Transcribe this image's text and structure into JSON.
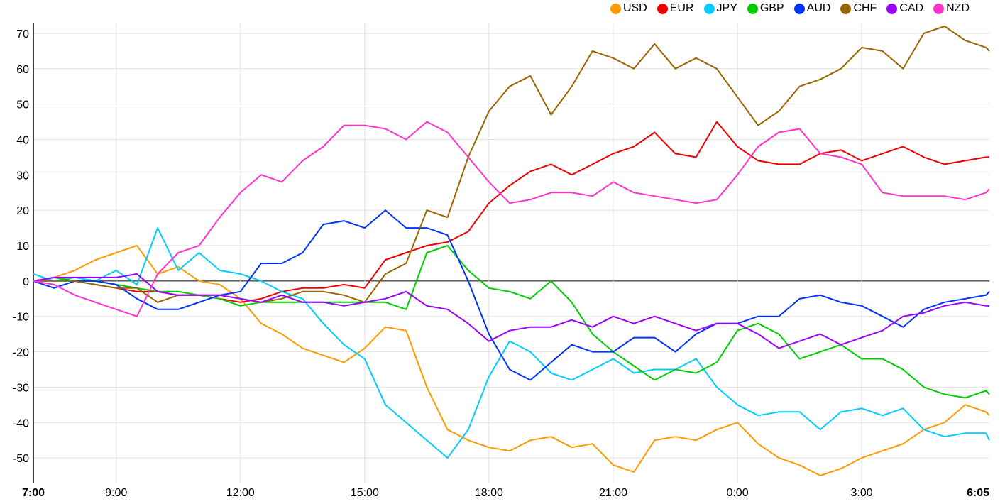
{
  "chart_data": {
    "type": "line",
    "title": "",
    "xlabel": "",
    "ylabel": "",
    "ylim": [
      -57,
      73
    ],
    "yticks": [
      -50,
      -40,
      -30,
      -20,
      -10,
      0,
      10,
      20,
      30,
      40,
      50,
      60,
      70
    ],
    "x_hours_from_start": [
      0,
      0.5,
      1,
      1.5,
      2,
      2.5,
      3,
      3.5,
      4,
      4.5,
      5,
      5.5,
      6,
      6.5,
      7,
      7.5,
      8,
      8.5,
      9,
      9.5,
      10,
      10.5,
      11,
      11.5,
      12,
      12.5,
      13,
      13.5,
      14,
      14.5,
      15,
      15.5,
      16,
      16.5,
      17,
      17.5,
      18,
      18.5,
      19,
      19.5,
      20,
      20.5,
      21,
      21.5,
      22,
      22.5,
      23,
      23.083
    ],
    "xticks": [
      {
        "label": "7:00",
        "hours": 0,
        "bold": true
      },
      {
        "label": "9:00",
        "hours": 2
      },
      {
        "label": "12:00",
        "hours": 5
      },
      {
        "label": "15:00",
        "hours": 8
      },
      {
        "label": "18:00",
        "hours": 11
      },
      {
        "label": "21:00",
        "hours": 14
      },
      {
        "label": "0:00",
        "hours": 17
      },
      {
        "label": "3:00",
        "hours": 20
      },
      {
        "label": "6:05",
        "hours": 23.083,
        "bold": true
      }
    ],
    "legend_position": "top-right",
    "grid": true,
    "series": [
      {
        "name": "USD",
        "color": "#ff9900",
        "values": [
          0,
          1,
          3,
          6,
          8,
          10,
          2,
          4,
          0,
          -1,
          -5,
          -12,
          -15,
          -19,
          -21,
          -23,
          -19,
          -13,
          -14,
          -30,
          -42,
          -45,
          -47,
          -48,
          -45,
          -44,
          -47,
          -46,
          -52,
          -54,
          -45,
          -44,
          -45,
          -42,
          -40,
          -46,
          -50,
          -52,
          -55,
          -53,
          -50,
          -48,
          -46,
          -42,
          -40,
          -35,
          -37,
          -38
        ]
      },
      {
        "name": "EUR",
        "color": "#ee0000",
        "values": [
          0,
          1,
          0,
          -1,
          -2,
          -3,
          -3,
          -4,
          -4,
          -5,
          -6,
          -5,
          -3,
          -2,
          -2,
          -1,
          -2,
          6,
          8,
          10,
          11,
          14,
          22,
          27,
          31,
          33,
          30,
          33,
          36,
          38,
          42,
          36,
          35,
          45,
          38,
          34,
          33,
          33,
          36,
          37,
          34,
          36,
          38,
          35,
          33,
          34,
          35,
          35
        ]
      },
      {
        "name": "JPY",
        "color": "#00ccff",
        "values": [
          2,
          0,
          1,
          0,
          3,
          -1,
          15,
          3,
          8,
          3,
          2,
          0,
          -3,
          -5,
          -12,
          -18,
          -22,
          -35,
          -40,
          -45,
          -50,
          -42,
          -27,
          -17,
          -20,
          -26,
          -28,
          -25,
          -22,
          -26,
          -25,
          -25,
          -22,
          -30,
          -35,
          -38,
          -37,
          -37,
          -42,
          -37,
          -36,
          -38,
          -36,
          -42,
          -44,
          -43,
          -43,
          -45
        ]
      },
      {
        "name": "GBP",
        "color": "#00cc00",
        "values": [
          0,
          1,
          0,
          0,
          -1,
          -2,
          -3,
          -3,
          -4,
          -5,
          -7,
          -6,
          -6,
          -6,
          -6,
          -6,
          -6,
          -6,
          -8,
          8,
          10,
          3,
          -2,
          -3,
          -5,
          0,
          -6,
          -15,
          -20,
          -24,
          -28,
          -25,
          -26,
          -23,
          -14,
          -12,
          -15,
          -22,
          -20,
          -18,
          -22,
          -22,
          -25,
          -30,
          -32,
          -33,
          -31,
          -32
        ]
      },
      {
        "name": "AUD",
        "color": "#0033ff",
        "values": [
          0,
          -2,
          0,
          0,
          -1,
          -5,
          -8,
          -8,
          -6,
          -4,
          -3,
          5,
          5,
          8,
          16,
          17,
          15,
          20,
          15,
          15,
          13,
          0,
          -15,
          -25,
          -28,
          -23,
          -18,
          -20,
          -20,
          -16,
          -16,
          -20,
          -15,
          -12,
          -12,
          -10,
          -10,
          -5,
          -4,
          -6,
          -7,
          -10,
          -13,
          -8,
          -6,
          -5,
          -4,
          -3
        ]
      },
      {
        "name": "CHF",
        "color": "#996600",
        "values": [
          0,
          0,
          0,
          -1,
          -2,
          -2,
          -6,
          -4,
          -4,
          -4,
          -5,
          -6,
          -5,
          -3,
          -3,
          -4,
          -6,
          2,
          5,
          20,
          18,
          35,
          48,
          55,
          58,
          47,
          55,
          65,
          63,
          60,
          67,
          60,
          63,
          60,
          52,
          44,
          48,
          55,
          57,
          60,
          66,
          65,
          60,
          70,
          72,
          68,
          66,
          65
        ]
      },
      {
        "name": "CAD",
        "color": "#9900ff",
        "values": [
          0,
          1,
          1,
          1,
          1,
          2,
          -3,
          -4,
          -4,
          -4,
          -5,
          -6,
          -4,
          -6,
          -6,
          -7,
          -6,
          -5,
          -3,
          -7,
          -8,
          -12,
          -17,
          -14,
          -13,
          -13,
          -11,
          -13,
          -10,
          -12,
          -10,
          -12,
          -14,
          -12,
          -12,
          -15,
          -19,
          -17,
          -15,
          -18,
          -16,
          -14,
          -10,
          -9,
          -7,
          -6,
          -7,
          -7
        ]
      },
      {
        "name": "NZD",
        "color": "#ff33cc",
        "values": [
          0,
          -1,
          -4,
          -6,
          -8,
          -10,
          2,
          8,
          10,
          18,
          25,
          30,
          28,
          34,
          38,
          44,
          44,
          43,
          40,
          45,
          42,
          35,
          28,
          22,
          23,
          25,
          25,
          24,
          28,
          25,
          24,
          23,
          22,
          23,
          30,
          38,
          42,
          43,
          36,
          35,
          33,
          25,
          24,
          24,
          24,
          23,
          25,
          26
        ]
      }
    ]
  }
}
